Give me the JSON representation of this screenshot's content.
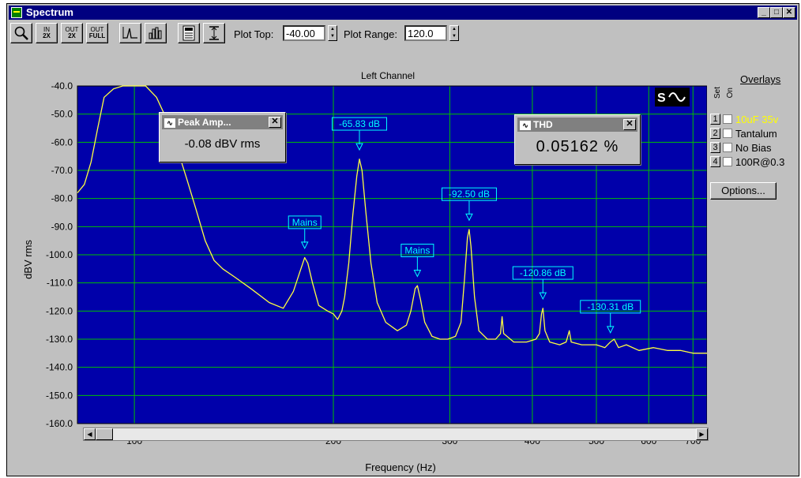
{
  "window": {
    "title": "Spectrum"
  },
  "toolbar": {
    "buttons": [
      {
        "name": "zoom-button",
        "icon": "magnifier-icon",
        "line1": "",
        "line2": ""
      },
      {
        "name": "zoom-in-2x-button",
        "icon": "zoom-in-icon",
        "line1": "IN",
        "line2": "2X"
      },
      {
        "name": "zoom-out-2x-button",
        "icon": "zoom-out-icon",
        "line1": "OUT",
        "line2": "2X"
      },
      {
        "name": "zoom-out-full-button",
        "icon": "zoom-full-icon",
        "line1": "OUT",
        "line2": "FULL"
      },
      {
        "name": "line-plot-button",
        "icon": "line-plot-icon",
        "line1": "",
        "line2": ""
      },
      {
        "name": "bar-plot-button",
        "icon": "bar-plot-icon",
        "line1": "",
        "line2": ""
      },
      {
        "name": "settings-button",
        "icon": "panel-icon",
        "line1": "",
        "line2": ""
      },
      {
        "name": "autoscale-button",
        "icon": "vertical-range-icon",
        "line1": "",
        "line2": ""
      }
    ],
    "plot_top_label": "Plot Top:",
    "plot_top_value": "-40.00",
    "plot_range_label": "Plot Range:",
    "plot_range_value": "120.0"
  },
  "overlays": {
    "header": "Overlays",
    "col_set": "Set",
    "col_on": "On",
    "rows": [
      {
        "num": "1",
        "label": "10uF 35v",
        "color": "#ffff00"
      },
      {
        "num": "2",
        "label": "Tantalum",
        "color": "#000000"
      },
      {
        "num": "3",
        "label": "No Bias",
        "color": "#000000"
      },
      {
        "num": "4",
        "label": "100R@0.3",
        "color": "#000000"
      }
    ],
    "options_label": "Options..."
  },
  "popups": {
    "peak": {
      "title": "Peak Amp...",
      "value": "-0.08 dBV rms",
      "icon": "waveform-icon"
    },
    "thd": {
      "title": "THD",
      "value": "0.05162 %",
      "icon": "waveform-icon"
    }
  },
  "colors": {
    "plot_bg": "#0000aa",
    "grid": "#00c000",
    "trace": "#ffff40",
    "annotation": "#00ffff"
  },
  "chart_data": {
    "type": "line",
    "title": "Left Channel",
    "xlabel": "Frequency (Hz)",
    "ylabel": "dBV rms",
    "xscale": "log",
    "xlim": [
      82,
      735
    ],
    "ylim": [
      -160,
      -40
    ],
    "grid": true,
    "x_ticks": [
      100,
      200,
      300,
      400,
      500,
      600,
      700
    ],
    "x_tick_labels": [
      "100",
      "200",
      "300",
      "400",
      "500",
      "600",
      "700"
    ],
    "y_ticks": [
      -40,
      -50,
      -60,
      -70,
      -80,
      -90,
      -100,
      -110,
      -120,
      -130,
      -140,
      -150,
      -160
    ],
    "y_tick_labels": [
      "-40.0",
      "-50.0",
      "-60.0",
      "-70.0",
      "-80.0",
      "-90.0",
      "-100.0",
      "-110.0",
      "-120.0",
      "-130.0",
      "-140.0",
      "-150.0",
      "-160.0"
    ],
    "series": [
      {
        "points": [
          [
            82,
            -78
          ],
          [
            84,
            -75
          ],
          [
            86,
            -67
          ],
          [
            88,
            -55
          ],
          [
            90,
            -44
          ],
          [
            93,
            -41
          ],
          [
            96,
            -40
          ],
          [
            100,
            -40
          ],
          [
            104,
            -40
          ],
          [
            108,
            -44
          ],
          [
            112,
            -52
          ],
          [
            116,
            -62
          ],
          [
            120,
            -73
          ],
          [
            124,
            -84
          ],
          [
            128,
            -95
          ],
          [
            132,
            -102
          ],
          [
            136,
            -105
          ],
          [
            142,
            -108
          ],
          [
            150,
            -112
          ],
          [
            160,
            -117
          ],
          [
            168,
            -119
          ],
          [
            174,
            -113
          ],
          [
            178,
            -106
          ],
          [
            181,
            -101
          ],
          [
            183,
            -103
          ],
          [
            186,
            -110
          ],
          [
            190,
            -118
          ],
          [
            196,
            -120
          ],
          [
            200,
            -121
          ],
          [
            203,
            -123
          ],
          [
            206,
            -120
          ],
          [
            208,
            -115
          ],
          [
            211,
            -103
          ],
          [
            214,
            -86
          ],
          [
            217,
            -72
          ],
          [
            219,
            -66
          ],
          [
            221,
            -70
          ],
          [
            224,
            -85
          ],
          [
            228,
            -103
          ],
          [
            233,
            -117
          ],
          [
            240,
            -124
          ],
          [
            250,
            -127
          ],
          [
            258,
            -125
          ],
          [
            262,
            -120
          ],
          [
            266,
            -112
          ],
          [
            268,
            -111
          ],
          [
            271,
            -116
          ],
          [
            275,
            -124
          ],
          [
            282,
            -129
          ],
          [
            290,
            -130
          ],
          [
            298,
            -130
          ],
          [
            306,
            -129
          ],
          [
            312,
            -124
          ],
          [
            316,
            -108
          ],
          [
            319,
            -94
          ],
          [
            321,
            -91
          ],
          [
            323,
            -97
          ],
          [
            327,
            -115
          ],
          [
            332,
            -127
          ],
          [
            342,
            -130
          ],
          [
            352,
            -130
          ],
          [
            358,
            -128
          ],
          [
            360,
            -122
          ],
          [
            362,
            -128
          ],
          [
            375,
            -131
          ],
          [
            392,
            -131
          ],
          [
            405,
            -130
          ],
          [
            410,
            -128
          ],
          [
            413,
            -121
          ],
          [
            415,
            -119
          ],
          [
            418,
            -127
          ],
          [
            425,
            -131
          ],
          [
            440,
            -132
          ],
          [
            450,
            -131
          ],
          [
            455,
            -127
          ],
          [
            458,
            -131
          ],
          [
            475,
            -132
          ],
          [
            500,
            -132
          ],
          [
            515,
            -133
          ],
          [
            525,
            -131
          ],
          [
            532,
            -130
          ],
          [
            540,
            -133
          ],
          [
            555,
            -132
          ],
          [
            580,
            -134
          ],
          [
            610,
            -133
          ],
          [
            640,
            -134
          ],
          [
            670,
            -134
          ],
          [
            700,
            -135
          ],
          [
            735,
            -135
          ]
        ]
      }
    ],
    "annotations": [
      {
        "text": "Mains",
        "x": 181,
        "y": -98
      },
      {
        "text": "-65.83 dB",
        "x": 219,
        "y": -63
      },
      {
        "text": "Mains",
        "x": 268,
        "y": -108
      },
      {
        "text": "-92.50 dB",
        "x": 321,
        "y": -88
      },
      {
        "text": "-120.86 dB",
        "x": 415,
        "y": -116
      },
      {
        "text": "-130.31 dB",
        "x": 525,
        "y": -128
      }
    ]
  },
  "scrollbar": {
    "left_arrow": "◀",
    "right_arrow": "▶"
  }
}
